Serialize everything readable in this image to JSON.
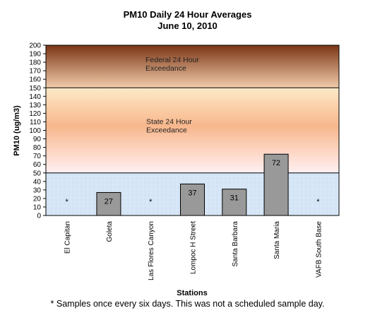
{
  "chart_data": {
    "type": "bar",
    "title": "PM10 Daily 24 Hour Averages",
    "subtitle": "June 10, 2010",
    "xlabel": "Stations",
    "ylabel": "PM10 (ug/m3)",
    "ylim": [
      0,
      200
    ],
    "ytick_step": 10,
    "categories": [
      "El Capitan",
      "Goleta",
      "Las Flores Canyon",
      "Lompoc H Street",
      "Santa Barbara",
      "Santa Maria",
      "VAFB South Base"
    ],
    "values": [
      null,
      27,
      null,
      37,
      31,
      72,
      null
    ],
    "value_labels": [
      "*",
      "27",
      "*",
      "37",
      "31",
      "72",
      "*"
    ],
    "bar_color": "#999999",
    "bands": [
      {
        "from": 150,
        "to": 200,
        "label_line1": "Federal 24 Hour",
        "label_line2": "Exceedance",
        "color_top": "#7a3516",
        "color_bottom": "#f2ccaa"
      },
      {
        "from": 50,
        "to": 150,
        "label_line1": "State 24 Hour",
        "label_line2": "Exceedance",
        "color_top": "#fde9c8",
        "color_mid": "#f8b78c",
        "color_bottom": "#fff0f2"
      },
      {
        "from": 0,
        "to": 50,
        "color": "#d6e6f6"
      }
    ],
    "footnote": "* Samples once every six days.  This was not a scheduled sample day."
  }
}
